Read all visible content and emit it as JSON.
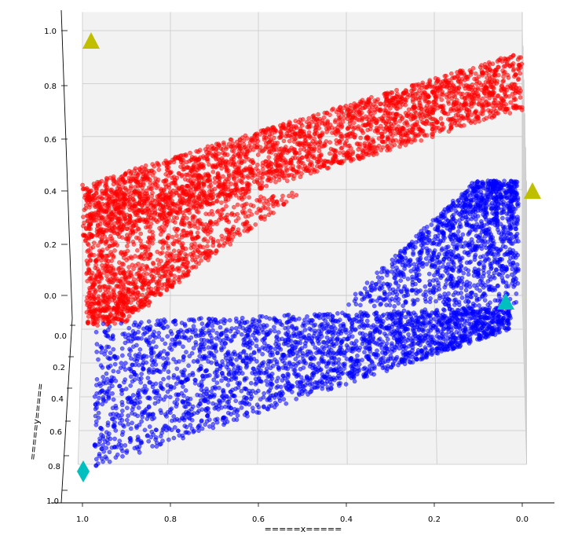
{
  "chart_data": {
    "type": "scatter",
    "projection": "3d",
    "title": "",
    "xlabel": "=====x=====",
    "ylabel": "=====y=====",
    "zlabel": "",
    "xlim": [
      0,
      1
    ],
    "ylim": [
      0,
      1
    ],
    "zlim": [
      0,
      1
    ],
    "x_inverted": true,
    "x_ticks": [
      "1.0",
      "0.8",
      "0.6",
      "0.4",
      "0.2",
      "0.0"
    ],
    "y_ticks": [
      "0.0",
      "0.2",
      "0.4",
      "0.6",
      "0.8",
      "1.0"
    ],
    "z_ticks": [
      "0.0",
      "0.2",
      "0.4",
      "0.6",
      "0.8",
      "1.0"
    ],
    "grid": true,
    "pane_color": "#f2f2f2",
    "series": [
      {
        "color": "#ff0000",
        "marker": "circle",
        "opacity": 0.55,
        "surface": "upper",
        "approx_points": 6000
      },
      {
        "color": "#0000ff",
        "marker": "circle",
        "opacity": 0.55,
        "surface": "lower",
        "approx_points": 6000
      }
    ],
    "markers": [
      {
        "shape": "triangle",
        "color": "#bfbf00",
        "x": 1.0,
        "y": 0.0,
        "z": 1.0
      },
      {
        "shape": "triangle",
        "color": "#bfbf00",
        "x": 0.0,
        "y": 0.0,
        "z": 0.4
      },
      {
        "shape": "triangle",
        "color": "#00bfbf",
        "x": 0.0,
        "y": 0.1,
        "z": 0.0
      },
      {
        "shape": "diamond",
        "color": "#00bfbf",
        "x": 1.0,
        "y": 1.0,
        "z": 0.0
      }
    ]
  }
}
